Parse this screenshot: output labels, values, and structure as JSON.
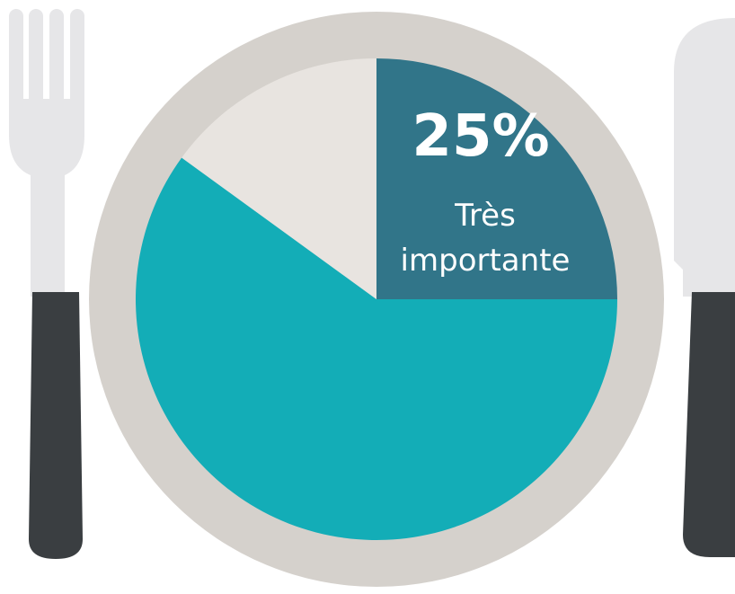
{
  "chart_data": {
    "type": "pie",
    "categories": [
      "Très importante",
      null,
      null
    ],
    "values": [
      25,
      60,
      15
    ],
    "value_labels": [
      "25%",
      null,
      null
    ],
    "colors": [
      "#317589",
      "#13adb7",
      "#e8e4e0"
    ],
    "start_angle": 0,
    "direction": "clockwise"
  }
}
